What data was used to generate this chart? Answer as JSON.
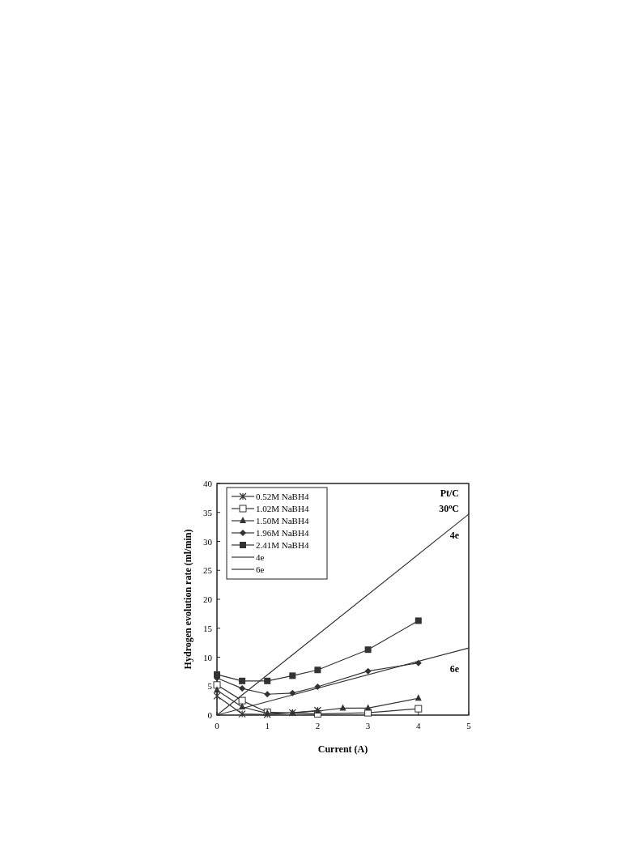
{
  "chart_data": {
    "type": "line",
    "xlabel": "Current (A)",
    "ylabel": "Hydrogen evolution rate (ml/min)",
    "xlim": [
      0,
      5
    ],
    "xticks": [
      0,
      1,
      2,
      3,
      4,
      5
    ],
    "ylim": [
      0,
      40
    ],
    "yticks": [
      0,
      5,
      10,
      15,
      20,
      25,
      30,
      35,
      40
    ],
    "grid": false,
    "legend": "top left",
    "line_style": "solid",
    "annotations": [
      "Pt/C",
      "30$^{o}$C",
      "4e",
      "6e"
    ],
    "series": [
      {
        "name": "0.52M NaBH4",
        "color": "#333333",
        "marker": "cross",
        "x": [
          0,
          0.5,
          1,
          1.5,
          2
        ],
        "values": [
          3.3,
          0.2,
          0.1,
          0.4,
          0.8
        ]
      },
      {
        "name": "1.02M NaBH4",
        "color": "#333333",
        "marker": "square-open",
        "x": [
          0,
          0.5,
          1,
          2,
          3,
          4
        ],
        "values": [
          5.2,
          2.5,
          0.5,
          0.2,
          0.4,
          1.1
        ]
      },
      {
        "name": "1.50M NaBH4",
        "color": "#333333",
        "marker": "triangle",
        "x": [
          0,
          0.5,
          1,
          1.5,
          2,
          2.5,
          3,
          4
        ],
        "values": [
          4.3,
          1.4,
          0.3,
          0.4,
          0.7,
          1.2,
          1.2,
          2.9
        ]
      },
      {
        "name": "1.96M NaBH4",
        "color": "#333333",
        "marker": "diamond",
        "x": [
          0,
          0.5,
          1,
          1.5,
          2,
          3,
          4
        ],
        "values": [
          6.4,
          4.6,
          3.6,
          3.8,
          4.9,
          7.6,
          9.0
        ]
      },
      {
        "name": "2.41M NaBH4",
        "color": "#333333",
        "marker": "square",
        "x": [
          0,
          0.5,
          1,
          1.5,
          2,
          3,
          4
        ],
        "values": [
          7.0,
          5.9,
          5.9,
          6.8,
          7.8,
          11.3,
          16.3
        ]
      },
      {
        "name": "4e",
        "color": "#333333",
        "marker": "none",
        "x": [
          0,
          5
        ],
        "values": [
          0,
          34.7
        ]
      },
      {
        "name": "6e",
        "color": "#333333",
        "marker": "none",
        "x": [
          0,
          5
        ],
        "values": [
          0,
          11.6
        ]
      }
    ]
  }
}
